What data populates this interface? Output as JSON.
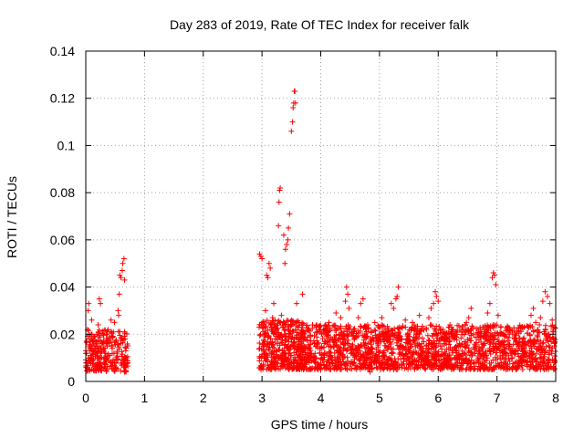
{
  "chart_data": {
    "type": "scatter",
    "title": "Day 283 of 2019, Rate Of TEC Index for receiver falk",
    "xlabel": "GPS time / hours",
    "ylabel": "ROTI / TECUs",
    "xlim": [
      0,
      8
    ],
    "ylim": [
      0,
      0.14
    ],
    "x_ticks": [
      0,
      1,
      2,
      3,
      4,
      5,
      6,
      7,
      8
    ],
    "y_ticks": [
      0,
      0.02,
      0.04,
      0.06,
      0.08,
      0.1,
      0.12,
      0.14
    ],
    "x_tick_labels": [
      "0",
      "1",
      "2",
      "3",
      "4",
      "5",
      "6",
      "7",
      "8"
    ],
    "y_tick_labels": [
      "0",
      "0.02",
      "0.04",
      "0.06",
      "0.08",
      "0.1",
      "0.12",
      "0.14"
    ],
    "grid": true,
    "marker": "+",
    "marker_color": "#ff0000",
    "series": [
      {
        "name": "ROTI",
        "points": [
          [
            0.0,
            0.013
          ],
          [
            0.02,
            0.008
          ],
          [
            0.03,
            0.022
          ],
          [
            0.04,
            0.03
          ],
          [
            0.05,
            0.033
          ],
          [
            0.06,
            0.018
          ],
          [
            0.07,
            0.005
          ],
          [
            0.08,
            0.011
          ],
          [
            0.1,
            0.026
          ],
          [
            0.11,
            0.015
          ],
          [
            0.13,
            0.009
          ],
          [
            0.15,
            0.019
          ],
          [
            0.17,
            0.014
          ],
          [
            0.19,
            0.012
          ],
          [
            0.21,
            0.024
          ],
          [
            0.23,
            0.035
          ],
          [
            0.25,
            0.033
          ],
          [
            0.27,
            0.01
          ],
          [
            0.29,
            0.016
          ],
          [
            0.31,
            0.008
          ],
          [
            0.33,
            0.012
          ],
          [
            0.35,
            0.02
          ],
          [
            0.37,
            0.015
          ],
          [
            0.39,
            0.009
          ],
          [
            0.41,
            0.011
          ],
          [
            0.43,
            0.026
          ],
          [
            0.45,
            0.014
          ],
          [
            0.47,
            0.021
          ],
          [
            0.49,
            0.025
          ],
          [
            0.51,
            0.017
          ],
          [
            0.53,
            0.012
          ],
          [
            0.55,
            0.03
          ],
          [
            0.56,
            0.028
          ],
          [
            0.57,
            0.037
          ],
          [
            0.58,
            0.045
          ],
          [
            0.6,
            0.044
          ],
          [
            0.62,
            0.047
          ],
          [
            0.63,
            0.05
          ],
          [
            0.65,
            0.052
          ],
          [
            0.66,
            0.043
          ],
          [
            0.67,
            0.018
          ],
          [
            0.68,
            0.013
          ],
          [
            0.69,
            0.01
          ],
          [
            0.7,
            0.008
          ],
          [
            2.96,
            0.054
          ],
          [
            2.98,
            0.053
          ],
          [
            3.0,
            0.052
          ],
          [
            3.02,
            0.015
          ],
          [
            3.04,
            0.01
          ],
          [
            3.06,
            0.03
          ],
          [
            3.08,
            0.045
          ],
          [
            3.1,
            0.044
          ],
          [
            3.12,
            0.05
          ],
          [
            3.14,
            0.048
          ],
          [
            3.16,
            0.012
          ],
          [
            3.18,
            0.027
          ],
          [
            3.2,
            0.033
          ],
          [
            3.22,
            0.018
          ],
          [
            3.24,
            0.02
          ],
          [
            3.26,
            0.016
          ],
          [
            3.28,
            0.066
          ],
          [
            3.29,
            0.076
          ],
          [
            3.3,
            0.081
          ],
          [
            3.31,
            0.082
          ],
          [
            3.33,
            0.028
          ],
          [
            3.35,
            0.013
          ],
          [
            3.37,
            0.062
          ],
          [
            3.39,
            0.05
          ],
          [
            3.4,
            0.056
          ],
          [
            3.42,
            0.058
          ],
          [
            3.44,
            0.06
          ],
          [
            3.45,
            0.065
          ],
          [
            3.47,
            0.071
          ],
          [
            3.49,
            0.024
          ],
          [
            3.5,
            0.106
          ],
          [
            3.52,
            0.11
          ],
          [
            3.53,
            0.116
          ],
          [
            3.54,
            0.118
          ],
          [
            3.55,
            0.123
          ],
          [
            3.56,
            0.123
          ],
          [
            3.57,
            0.118
          ],
          [
            3.59,
            0.033
          ],
          [
            3.61,
            0.015
          ],
          [
            3.63,
            0.025
          ],
          [
            3.65,
            0.01
          ],
          [
            3.67,
            0.018
          ],
          [
            3.69,
            0.037
          ],
          [
            3.71,
            0.013
          ],
          [
            3.74,
            0.021
          ],
          [
            3.78,
            0.012
          ],
          [
            3.82,
            0.019
          ],
          [
            3.86,
            0.024
          ],
          [
            3.9,
            0.01
          ],
          [
            3.94,
            0.016
          ],
          [
            3.98,
            0.022
          ],
          [
            4.02,
            0.014
          ],
          [
            4.06,
            0.012
          ],
          [
            4.1,
            0.02
          ],
          [
            4.14,
            0.025
          ],
          [
            4.18,
            0.008
          ],
          [
            4.22,
            0.017
          ],
          [
            4.26,
            0.029
          ],
          [
            4.3,
            0.013
          ],
          [
            4.34,
            0.027
          ],
          [
            4.38,
            0.02
          ],
          [
            4.42,
            0.034
          ],
          [
            4.44,
            0.04
          ],
          [
            4.46,
            0.037
          ],
          [
            4.48,
            0.031
          ],
          [
            4.52,
            0.015
          ],
          [
            4.56,
            0.022
          ],
          [
            4.6,
            0.011
          ],
          [
            4.64,
            0.027
          ],
          [
            4.68,
            0.033
          ],
          [
            4.72,
            0.035
          ],
          [
            4.76,
            0.019
          ],
          [
            4.8,
            0.006
          ],
          [
            4.84,
            0.004
          ],
          [
            4.88,
            0.014
          ],
          [
            4.92,
            0.025
          ],
          [
            4.96,
            0.009
          ],
          [
            5.0,
            0.018
          ],
          [
            5.04,
            0.027
          ],
          [
            5.08,
            0.013
          ],
          [
            5.12,
            0.02
          ],
          [
            5.16,
            0.015
          ],
          [
            5.2,
            0.033
          ],
          [
            5.24,
            0.031
          ],
          [
            5.28,
            0.035
          ],
          [
            5.3,
            0.036
          ],
          [
            5.32,
            0.04
          ],
          [
            5.36,
            0.018
          ],
          [
            5.4,
            0.011
          ],
          [
            5.44,
            0.026
          ],
          [
            5.48,
            0.02
          ],
          [
            5.52,
            0.014
          ],
          [
            5.56,
            0.025
          ],
          [
            5.6,
            0.009
          ],
          [
            5.64,
            0.019
          ],
          [
            5.68,
            0.028
          ],
          [
            5.72,
            0.016
          ],
          [
            5.76,
            0.012
          ],
          [
            5.8,
            0.022
          ],
          [
            5.84,
            0.027
          ],
          [
            5.88,
            0.031
          ],
          [
            5.92,
            0.033
          ],
          [
            5.95,
            0.038
          ],
          [
            5.97,
            0.036
          ],
          [
            6.0,
            0.034
          ],
          [
            6.04,
            0.015
          ],
          [
            6.08,
            0.022
          ],
          [
            6.12,
            0.011
          ],
          [
            6.16,
            0.018
          ],
          [
            6.2,
            0.024
          ],
          [
            6.24,
            0.013
          ],
          [
            6.28,
            0.019
          ],
          [
            6.32,
            0.008
          ],
          [
            6.36,
            0.016
          ],
          [
            6.4,
            0.021
          ],
          [
            6.44,
            0.012
          ],
          [
            6.48,
            0.025
          ],
          [
            6.52,
            0.027
          ],
          [
            6.56,
            0.031
          ],
          [
            6.6,
            0.02
          ],
          [
            6.64,
            0.014
          ],
          [
            6.68,
            0.01
          ],
          [
            6.72,
            0.019
          ],
          [
            6.76,
            0.023
          ],
          [
            6.8,
            0.012
          ],
          [
            6.84,
            0.029
          ],
          [
            6.88,
            0.033
          ],
          [
            6.92,
            0.044
          ],
          [
            6.94,
            0.046
          ],
          [
            6.96,
            0.045
          ],
          [
            6.98,
            0.041
          ],
          [
            7.02,
            0.028
          ],
          [
            7.06,
            0.016
          ],
          [
            7.1,
            0.02
          ],
          [
            7.14,
            0.012
          ],
          [
            7.18,
            0.023
          ],
          [
            7.22,
            0.015
          ],
          [
            7.26,
            0.01
          ],
          [
            7.3,
            0.018
          ],
          [
            7.34,
            0.021
          ],
          [
            7.38,
            0.014
          ],
          [
            7.42,
            0.009
          ],
          [
            7.46,
            0.016
          ],
          [
            7.5,
            0.012
          ],
          [
            7.54,
            0.023
          ],
          [
            7.58,
            0.028
          ],
          [
            7.62,
            0.031
          ],
          [
            7.66,
            0.025
          ],
          [
            7.7,
            0.021
          ],
          [
            7.74,
            0.027
          ],
          [
            7.78,
            0.034
          ],
          [
            7.82,
            0.038
          ],
          [
            7.86,
            0.036
          ],
          [
            7.9,
            0.033
          ],
          [
            7.94,
            0.026
          ],
          [
            7.98,
            0.009
          ]
        ]
      }
    ],
    "clusters": [
      {
        "x": [
          0.0,
          0.72
        ],
        "y": [
          0.004,
          0.022
        ],
        "density": 6
      },
      {
        "x": [
          2.95,
          3.7
        ],
        "y": [
          0.005,
          0.026
        ],
        "density": 9
      },
      {
        "x": [
          3.7,
          8.0
        ],
        "y": [
          0.005,
          0.024
        ],
        "density": 7
      }
    ]
  }
}
